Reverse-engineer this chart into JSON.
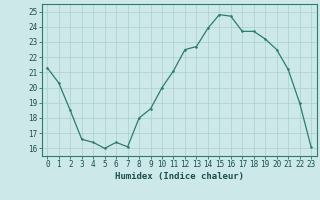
{
  "x": [
    0,
    1,
    2,
    3,
    4,
    5,
    6,
    7,
    8,
    9,
    10,
    11,
    12,
    13,
    14,
    15,
    16,
    17,
    18,
    19,
    20,
    21,
    22,
    23
  ],
  "y": [
    21.3,
    20.3,
    18.5,
    16.6,
    16.4,
    16.0,
    16.4,
    16.1,
    18.0,
    18.6,
    20.0,
    21.1,
    22.5,
    22.7,
    23.9,
    24.8,
    24.7,
    23.7,
    23.7,
    23.2,
    22.5,
    21.2,
    19.0,
    16.1
  ],
  "xlabel": "Humidex (Indice chaleur)",
  "xlim": [
    -0.5,
    23.5
  ],
  "ylim": [
    15.5,
    25.5
  ],
  "yticks": [
    16,
    17,
    18,
    19,
    20,
    21,
    22,
    23,
    24,
    25
  ],
  "xticks": [
    0,
    1,
    2,
    3,
    4,
    5,
    6,
    7,
    8,
    9,
    10,
    11,
    12,
    13,
    14,
    15,
    16,
    17,
    18,
    19,
    20,
    21,
    22,
    23
  ],
  "line_color": "#2e7d6b",
  "marker_color": "#2e7d6b",
  "bg_color": "#cce8e8",
  "grid_color": "#aacfcf",
  "axes_color": "#2e7d6b",
  "label_color": "#1a5050",
  "tick_color": "#1a5050",
  "tick_fontsize": 5.5,
  "xlabel_fontsize": 6.5
}
